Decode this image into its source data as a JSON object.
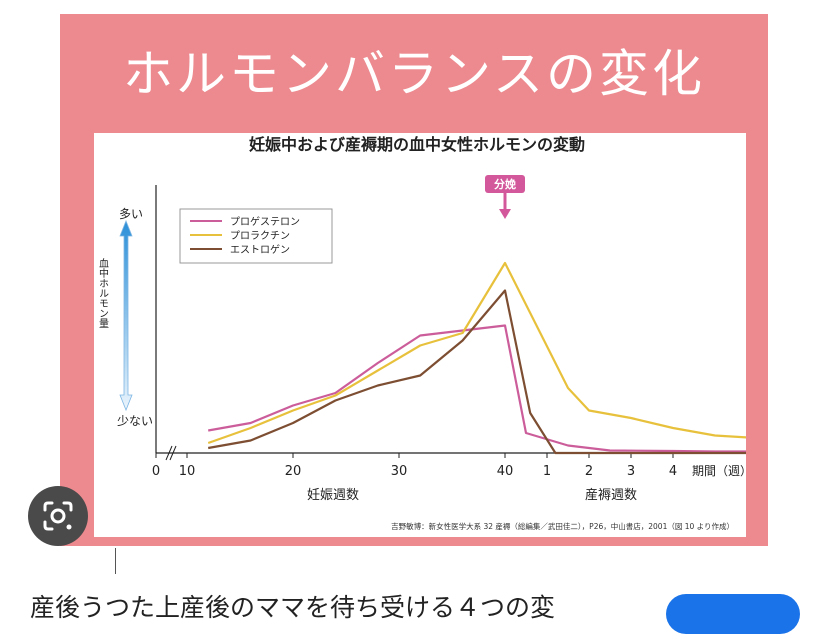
{
  "banner": {
    "title": "ホルモンバランスの変化",
    "color": "#ec8a8f"
  },
  "caption": {
    "text": "産後うつた上産後のママを待ち受ける４つの変"
  },
  "source_note": "吉野敏博：新女性医学大系 32 産褥（総編集／武田佳二），P26，中山書店，2001（図 10 より作成）",
  "icons": {
    "lens": "lens-icon",
    "arrow": "double-arrow-icon"
  },
  "chart_data": {
    "type": "line",
    "title": "妊娠中および産褥期の血中女性ホルモンの変動",
    "ylabel": "血中ホルモン量",
    "y_high_label": "多い",
    "y_low_label": "少ない",
    "event_label": "分娩",
    "xlabel_pregnancy": "妊娠週数",
    "xlabel_postpartum": "産褥週数",
    "x_axis_unit": "期間（週）",
    "x_ticks_pregnancy": [
      "0",
      "10",
      "20",
      "30",
      "40"
    ],
    "x_ticks_postpartum": [
      "1",
      "2",
      "3",
      "4"
    ],
    "legend_position": "top-left",
    "series": [
      {
        "name": "プロゲステロン",
        "color": "#cc5d9b",
        "points": [
          [
            12,
            0.09
          ],
          [
            16,
            0.12
          ],
          [
            20,
            0.19
          ],
          [
            24,
            0.24
          ],
          [
            28,
            0.36
          ],
          [
            32,
            0.47
          ],
          [
            36,
            0.49
          ],
          [
            40,
            0.51
          ],
          [
            40.5,
            0.08
          ],
          [
            41.5,
            0.03
          ],
          [
            42.5,
            0.01
          ],
          [
            44,
            0.008
          ],
          [
            45,
            0.006
          ],
          [
            46,
            0.006
          ],
          [
            47,
            0.006
          ]
        ]
      },
      {
        "name": "プロラクチン",
        "color": "#e8c13c",
        "points": [
          [
            12,
            0.04
          ],
          [
            16,
            0.1
          ],
          [
            20,
            0.17
          ],
          [
            24,
            0.23
          ],
          [
            28,
            0.33
          ],
          [
            32,
            0.43
          ],
          [
            36,
            0.48
          ],
          [
            40,
            0.76
          ],
          [
            41.5,
            0.26
          ],
          [
            42,
            0.17
          ],
          [
            43,
            0.14
          ],
          [
            44,
            0.1
          ],
          [
            45,
            0.07
          ],
          [
            46,
            0.06
          ],
          [
            47,
            0.055
          ]
        ]
      },
      {
        "name": "エストロゲン",
        "color": "#7d4e32",
        "points": [
          [
            12,
            0.02
          ],
          [
            16,
            0.05
          ],
          [
            20,
            0.12
          ],
          [
            24,
            0.21
          ],
          [
            28,
            0.27
          ],
          [
            32,
            0.31
          ],
          [
            36,
            0.45
          ],
          [
            40,
            0.65
          ],
          [
            40.6,
            0.16
          ],
          [
            41.2,
            0.0
          ],
          [
            42,
            0.0
          ],
          [
            44,
            0.0
          ],
          [
            47,
            0.0
          ]
        ]
      }
    ]
  }
}
